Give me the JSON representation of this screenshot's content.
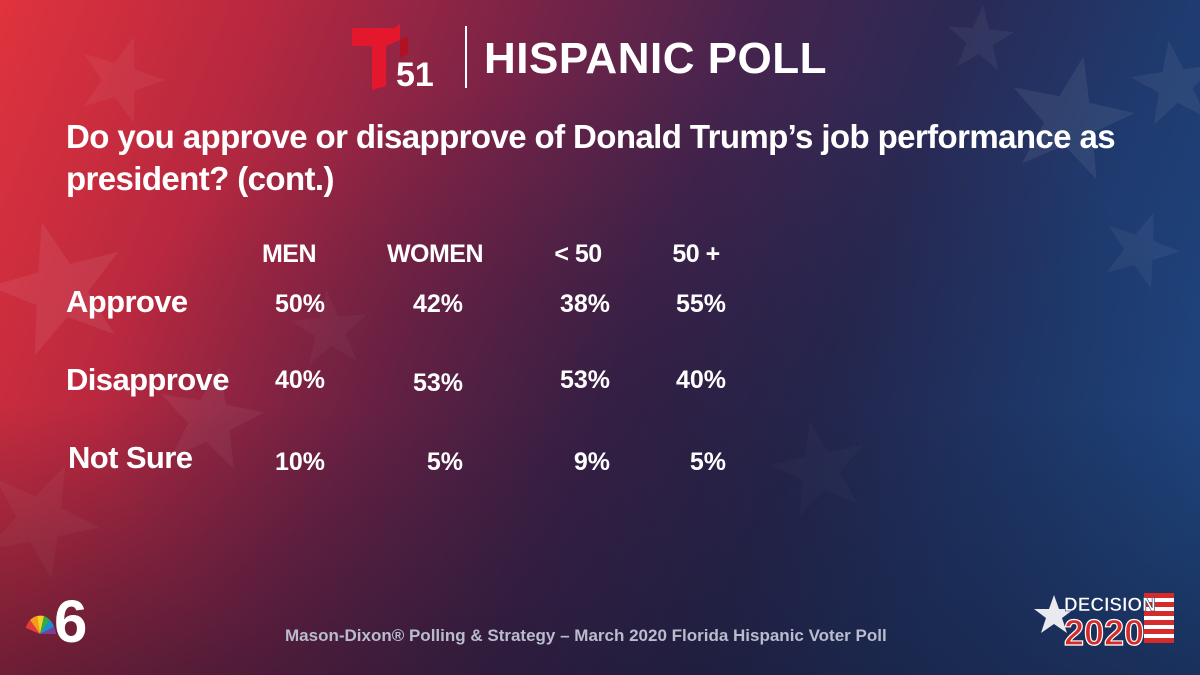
{
  "header": {
    "brand_number": "51",
    "title": "HISPANIC POLL"
  },
  "question": "Do you approve or disapprove of Donald Trump’s job performance as president? (cont.)",
  "chart_data": {
    "type": "table",
    "columns": [
      "MEN",
      "WOMEN",
      "< 50",
      "50 +"
    ],
    "rows": [
      {
        "label": "Approve",
        "values": [
          "50%",
          "42%",
          "38%",
          "55%"
        ]
      },
      {
        "label": "Disapprove",
        "values": [
          "40%",
          "53%",
          "53%",
          "40%"
        ]
      },
      {
        "label": "Not Sure",
        "values": [
          "10%",
          "5%",
          "9%",
          "5%"
        ]
      }
    ]
  },
  "footer": {
    "source": "Mason-Dixon® Polling & Strategy – March 2020 Florida Hispanic Voter Poll",
    "station_number": "6",
    "decision_word": "DECISION",
    "decision_year": "2020"
  },
  "colors": {
    "brand_red": "#e3182d",
    "peacock_red": "#e23b3b",
    "peacock_orange": "#f39c1f",
    "peacock_yellow": "#f6d11e",
    "peacock_green": "#2eae4b",
    "peacock_blue": "#1a8fd6",
    "peacock_purple": "#7b3f98",
    "decision_red": "#d52b2b",
    "decision_navy": "#1f3765",
    "source_text": "#b9bccc"
  }
}
